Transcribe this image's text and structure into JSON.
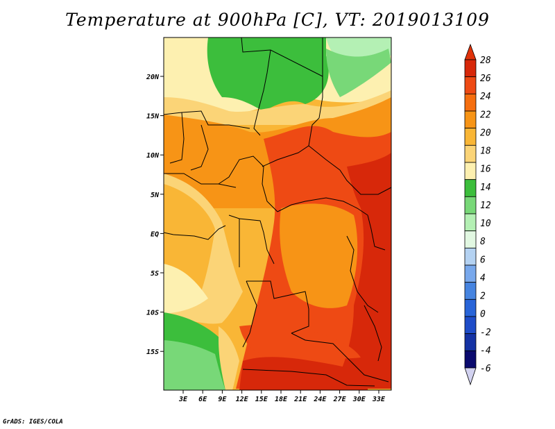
{
  "title": "Temperature at 900hPa [C], VT: 2019013109",
  "credit": "GrADS: IGES/COLA",
  "map": {
    "lon_labels": [
      "3E",
      "6E",
      "9E",
      "12E",
      "15E",
      "18E",
      "21E",
      "24E",
      "27E",
      "30E",
      "33E"
    ],
    "lat_labels": [
      "20N",
      "15N",
      "10N",
      "5N",
      "EQ",
      "5S",
      "10S",
      "15S"
    ]
  },
  "colorbar": {
    "labels": [
      "28",
      "26",
      "24",
      "22",
      "20",
      "18",
      "16",
      "14",
      "12",
      "10",
      "8",
      "6",
      "4",
      "2",
      "0",
      "-2",
      "-4",
      "-6"
    ],
    "colors": [
      "#d7280a",
      "#ee4a14",
      "#f56e0f",
      "#f79416",
      "#f9b636",
      "#fbd477",
      "#fdf0b0",
      "#3cbe3c",
      "#78d878",
      "#b4f0b4",
      "#e2f8e2",
      "#b4d2f2",
      "#78a8ec",
      "#4684e0",
      "#2864d8",
      "#1e4cc8",
      "#1432a4",
      "#0a0a6e"
    ],
    "top_color": "#e0320a",
    "bottom_color": "#d2d2f0"
  },
  "legend_colors": {
    "green": "#3cbe3c",
    "light_green": "#78d878",
    "pale_green": "#b4f0b4",
    "pale_yellow": "#fdf0b0",
    "light_orange": "#fbd477",
    "orange": "#f9b636",
    "dark_orange": "#f79416",
    "red_orange": "#ee4a14",
    "red": "#d7280a"
  }
}
